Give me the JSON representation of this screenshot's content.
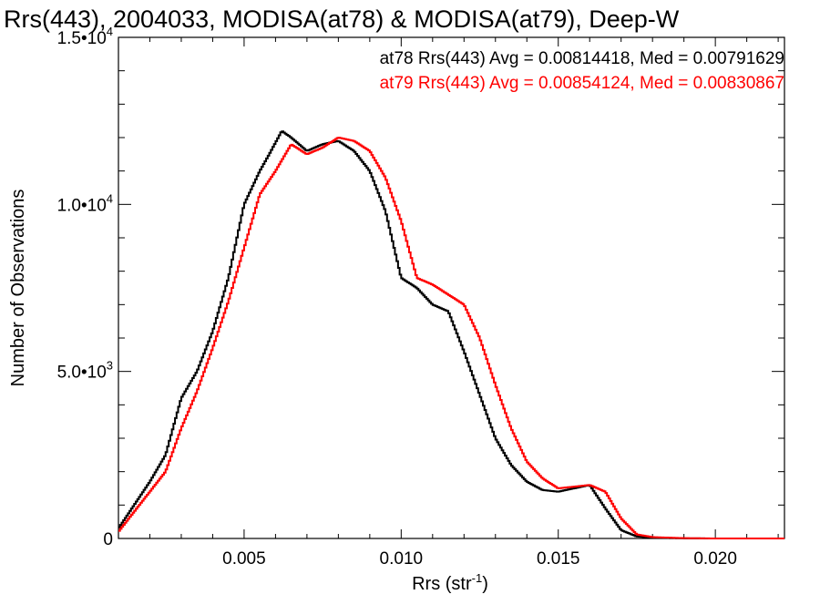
{
  "chart_data": {
    "type": "line",
    "step": true,
    "title": "Rrs(443), 2004033, MODISA(at78) & MODISA(at79), Deep-W",
    "xlabel": "Rrs (str",
    "xlabel_sup": "-1",
    "xlabel_tail": ")",
    "ylabel": "Number of Observations",
    "xlim": [
      0.001,
      0.0222
    ],
    "ylim": [
      0,
      15000
    ],
    "xticks": [
      {
        "value": 0.005,
        "label": "0.005"
      },
      {
        "value": 0.01,
        "label": "0.010"
      },
      {
        "value": 0.015,
        "label": "0.015"
      },
      {
        "value": 0.02,
        "label": "0.020"
      }
    ],
    "yticks": [
      {
        "value": 0,
        "label": "0",
        "sup": ""
      },
      {
        "value": 5000,
        "label": "5.0•10",
        "sup": "3"
      },
      {
        "value": 10000,
        "label": "1.0•10",
        "sup": "4"
      },
      {
        "value": 15000,
        "label": "1.5•10",
        "sup": "4"
      }
    ],
    "annotations": [
      {
        "text": "at78 Rrs(443) Avg = 0.00814418, Med = 0.00791629",
        "color": "#000000"
      },
      {
        "text": "at79 Rrs(443) Avg = 0.00854124, Med = 0.00830867",
        "color": "#ff0000"
      }
    ],
    "series": [
      {
        "color": "#000000",
        "x": [
          0.001,
          0.0015,
          0.002,
          0.0025,
          0.003,
          0.0035,
          0.004,
          0.0045,
          0.005,
          0.0055,
          0.0058,
          0.0062,
          0.0065,
          0.007,
          0.0075,
          0.008,
          0.0085,
          0.009,
          0.0095,
          0.01,
          0.0105,
          0.011,
          0.0115,
          0.012,
          0.0125,
          0.013,
          0.0135,
          0.014,
          0.0145,
          0.015,
          0.0155,
          0.016,
          0.0165,
          0.017,
          0.0175,
          0.018,
          0.019,
          0.02,
          0.0222
        ],
        "y": [
          300,
          1000,
          1700,
          2500,
          4200,
          5000,
          6200,
          7800,
          10000,
          11000,
          11500,
          12200,
          12000,
          11600,
          11800,
          11900,
          11600,
          11000,
          9800,
          7800,
          7500,
          7000,
          6800,
          5600,
          4300,
          3000,
          2200,
          1700,
          1450,
          1400,
          1500,
          1600,
          900,
          250,
          60,
          20,
          5,
          0,
          0
        ]
      },
      {
        "color": "#ff0000",
        "x": [
          0.001,
          0.0015,
          0.002,
          0.0025,
          0.003,
          0.0035,
          0.004,
          0.0045,
          0.005,
          0.0055,
          0.006,
          0.0065,
          0.007,
          0.0075,
          0.008,
          0.0085,
          0.009,
          0.0095,
          0.01,
          0.0105,
          0.011,
          0.0115,
          0.012,
          0.0125,
          0.013,
          0.0135,
          0.014,
          0.0145,
          0.015,
          0.0155,
          0.016,
          0.0165,
          0.017,
          0.0175,
          0.018,
          0.019,
          0.02,
          0.0222
        ],
        "y": [
          200,
          800,
          1400,
          2000,
          3300,
          4400,
          5700,
          7100,
          8700,
          10300,
          11000,
          11800,
          11500,
          11700,
          12000,
          11900,
          11600,
          10800,
          9500,
          7800,
          7600,
          7300,
          7000,
          6000,
          4600,
          3300,
          2300,
          1800,
          1500,
          1550,
          1600,
          1400,
          600,
          120,
          40,
          10,
          0,
          0
        ]
      }
    ],
    "grid": false
  }
}
